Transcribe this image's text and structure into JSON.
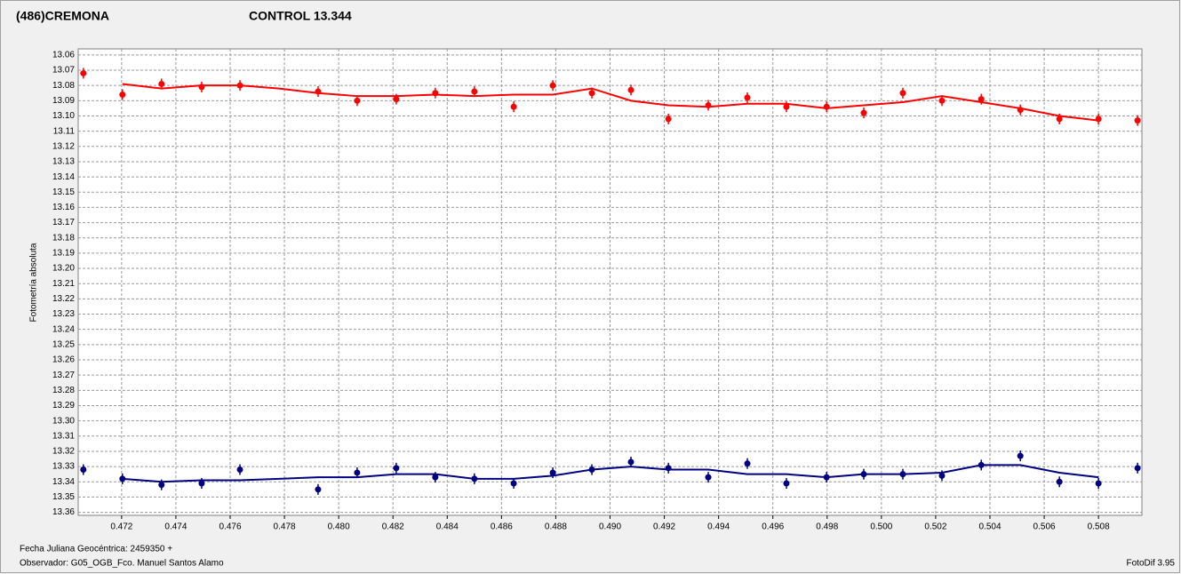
{
  "chart_data": {
    "type": "scatter",
    "y_label": "Fotometría absoluta",
    "x_caption": "Fecha Juliana Geocéntrica: 2459350 +",
    "observer": "Observador: G05_OGB_Fco. Manuel Santos Alamo",
    "software": "FotoDif 3.95",
    "y_inverted": true,
    "grid": true,
    "xlim": [
      0.4704,
      0.5096
    ],
    "ylim": [
      13.056,
      13.362
    ],
    "xticks": [
      0.472,
      0.474,
      0.476,
      0.478,
      {
        "value": 0.48,
        "label": "0.480"
      },
      0.482,
      0.484,
      0.486,
      0.488,
      {
        "value": 0.49,
        "label": "0.490"
      },
      0.492,
      0.494,
      0.496,
      0.498,
      {
        "value": 0.5,
        "label": "0.500"
      },
      0.502,
      0.504,
      0.506,
      0.508
    ],
    "yticks": [
      13.06,
      13.07,
      13.08,
      13.09,
      {
        "value": 13.1,
        "label": "13.10"
      },
      13.11,
      13.12,
      13.13,
      13.14,
      13.15,
      13.16,
      13.17,
      13.18,
      13.19,
      {
        "value": 13.2,
        "label": "13.20"
      },
      13.21,
      13.22,
      13.23,
      13.24,
      13.25,
      13.26,
      13.27,
      13.28,
      13.29,
      {
        "value": 13.3,
        "label": "13.30"
      },
      13.31,
      13.32,
      13.33,
      13.34,
      13.35,
      13.36
    ],
    "x": [
      0.47059,
      0.47203,
      0.47347,
      0.47495,
      0.47636,
      0.47924,
      0.48068,
      0.48212,
      0.48356,
      0.485,
      0.48645,
      0.48789,
      0.48933,
      0.49077,
      0.49215,
      0.49362,
      0.49506,
      0.4965,
      0.49798,
      0.49935,
      0.50079,
      0.50223,
      0.50368,
      0.50512,
      0.50656,
      0.508,
      0.50944
    ],
    "fit_x": [
      0.47203,
      0.47347,
      0.47495,
      0.47636,
      0.4778,
      0.47924,
      0.48068,
      0.48212,
      0.48356,
      0.485,
      0.48645,
      0.48789,
      0.48933,
      0.49077,
      0.49215,
      0.49362,
      0.49506,
      0.4965,
      0.49798,
      0.49935,
      0.50079,
      0.50223,
      0.50368,
      0.50512,
      0.50656,
      0.508
    ],
    "series": [
      {
        "name": "(486)CREMONA",
        "color": "#ff0000",
        "values": [
          13.072,
          13.086,
          13.079,
          13.081,
          13.08,
          13.084,
          13.09,
          13.089,
          13.085,
          13.084,
          13.094,
          13.08,
          13.085,
          13.083,
          13.102,
          13.093,
          13.088,
          13.094,
          13.094,
          13.098,
          13.085,
          13.09,
          13.089,
          13.096,
          13.102,
          13.102,
          13.103
        ],
        "fit": [
          13.079,
          13.082,
          13.08,
          13.08,
          13.082,
          13.085,
          13.087,
          13.087,
          13.086,
          13.087,
          13.086,
          13.086,
          13.082,
          13.09,
          13.093,
          13.094,
          13.092,
          13.092,
          13.095,
          13.093,
          13.091,
          13.087,
          13.091,
          13.095,
          13.1,
          13.103
        ]
      },
      {
        "name": "CONTROL 13.344",
        "color": "#000080",
        "values": [
          13.332,
          13.338,
          13.342,
          13.341,
          13.332,
          13.345,
          13.334,
          13.331,
          13.337,
          13.338,
          13.341,
          13.334,
          13.332,
          13.327,
          13.331,
          13.337,
          13.328,
          13.341,
          13.337,
          13.335,
          13.335,
          13.336,
          13.329,
          13.323,
          13.34,
          13.341,
          13.331
        ],
        "fit": [
          13.338,
          13.34,
          13.339,
          13.339,
          13.338,
          13.337,
          13.337,
          13.335,
          13.335,
          13.338,
          13.338,
          13.336,
          13.332,
          13.33,
          13.332,
          13.332,
          13.335,
          13.335,
          13.337,
          13.335,
          13.335,
          13.334,
          13.329,
          13.329,
          13.334,
          13.337
        ]
      }
    ]
  }
}
